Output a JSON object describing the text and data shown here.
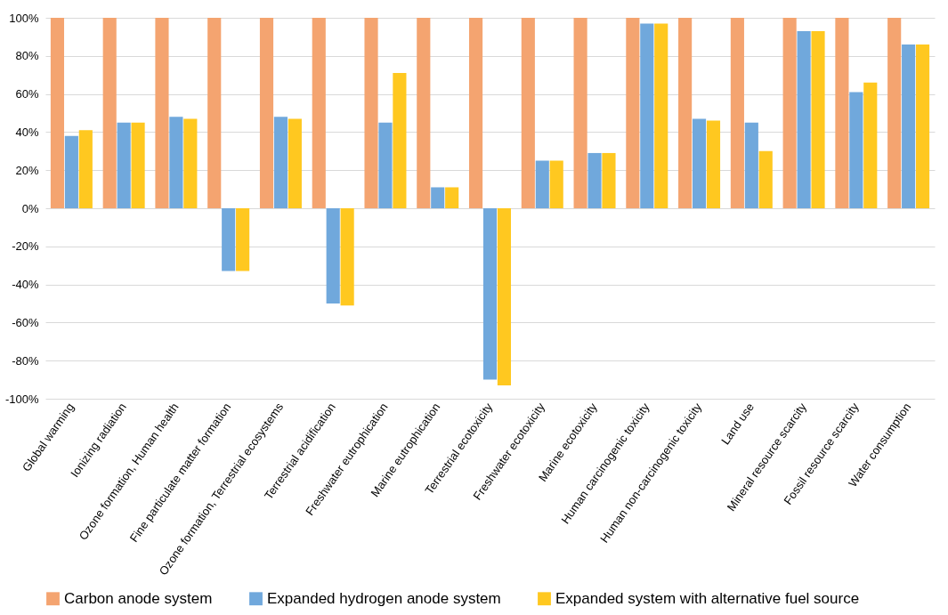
{
  "chart_data": {
    "type": "bar",
    "categories": [
      "Global warming",
      "Ionizing radiation",
      "Ozone formation, Human health",
      "Fine particulate matter formation",
      "Ozone formation, Terrestrial ecosystems",
      "Terrestrial acidification",
      "Freshwater eutrophication",
      "Marine eutrophication",
      "Terrestrial ecotoxicity",
      "Freshwater ecotoxicity",
      "Marine ecotoxicity",
      "Human carcinogenic toxicity",
      "Human non-carcinogenic toxicity",
      "Land use",
      "Mineral resource scarcity",
      "Fossil resource scarcity",
      "Water consumption"
    ],
    "series": [
      {
        "name": "Carbon anode system",
        "color": "#f4a470",
        "values": [
          100,
          100,
          100,
          100,
          100,
          100,
          100,
          100,
          100,
          100,
          100,
          100,
          100,
          100,
          100,
          100,
          100
        ]
      },
      {
        "name": "Expanded hydrogen anode system",
        "color": "#70a8dc",
        "values": [
          38,
          45,
          48,
          -33,
          48,
          -50,
          45,
          11,
          -90,
          25,
          29,
          97,
          47,
          45,
          93,
          61,
          86
        ]
      },
      {
        "name": "Expanded system with alternative fuel source",
        "color": "#ffc820",
        "values": [
          41,
          45,
          47,
          -33,
          47,
          -51,
          71,
          11,
          -93,
          25,
          29,
          97,
          46,
          30,
          93,
          66,
          86
        ]
      }
    ],
    "ylim": [
      -100,
      100
    ],
    "yticks": [
      {
        "value": -100,
        "label": "-100%"
      },
      {
        "value": -80,
        "label": "-80%"
      },
      {
        "value": -60,
        "label": "-60%"
      },
      {
        "value": -40,
        "label": "-40%"
      },
      {
        "value": -20,
        "label": "-20%"
      },
      {
        "value": 0,
        "label": "0%"
      },
      {
        "value": 20,
        "label": "20%"
      },
      {
        "value": 40,
        "label": "40%"
      },
      {
        "value": 60,
        "label": "60%"
      },
      {
        "value": 80,
        "label": "80%"
      },
      {
        "value": 100,
        "label": "100%"
      }
    ],
    "grid": "y",
    "legend": "bottom"
  }
}
